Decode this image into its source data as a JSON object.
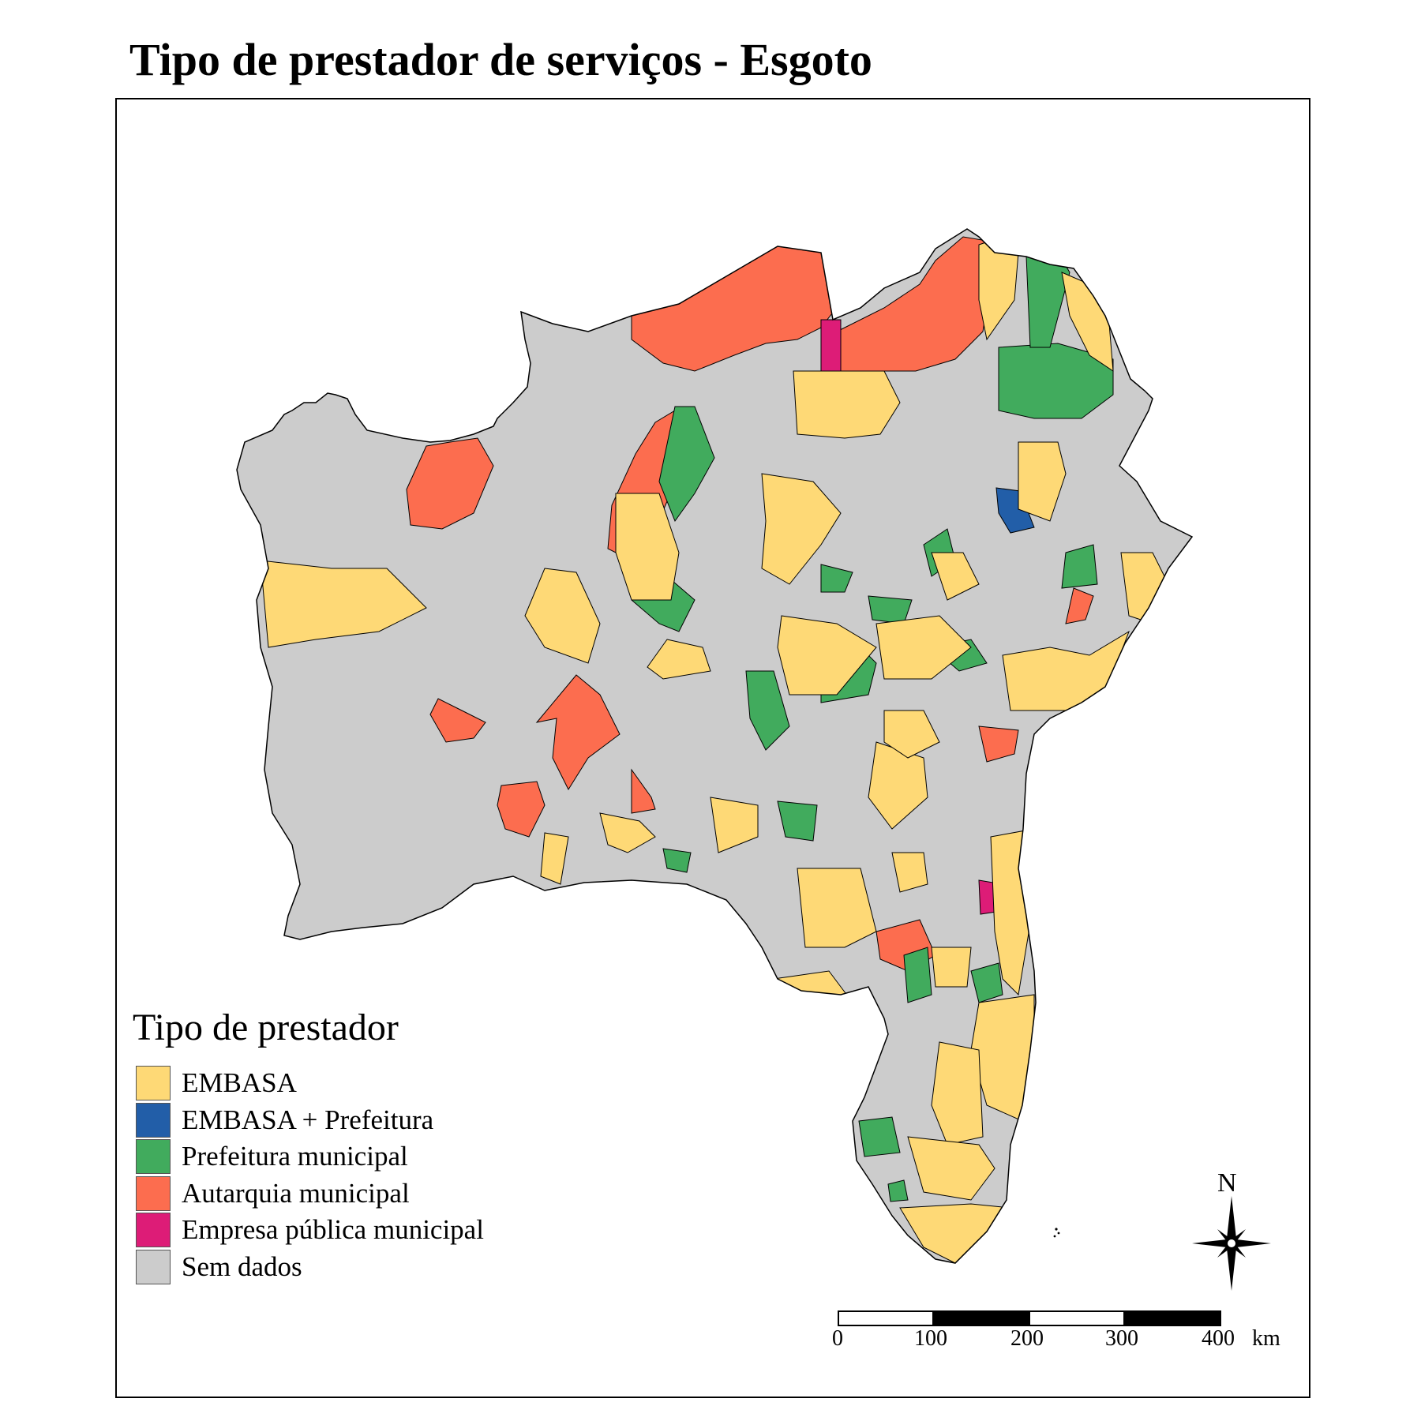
{
  "title": "Tipo de prestador de serviços - Esgoto",
  "legend": {
    "title": "Tipo de prestador",
    "items": [
      {
        "label": "EMBASA",
        "color": "#FED976"
      },
      {
        "label": "EMBASA + Prefeitura",
        "color": "#225EA8"
      },
      {
        "label": "Prefeitura municipal",
        "color": "#41AB5D"
      },
      {
        "label": "Autarquia municipal",
        "color": "#FC6D4F"
      },
      {
        "label": "Empresa pública municipal",
        "color": "#DD1C77"
      },
      {
        "label": "Sem dados",
        "color": "#CCCCCC"
      }
    ]
  },
  "north_arrow": {
    "label": "N"
  },
  "scale_bar": {
    "ticks": [
      "0",
      "100",
      "200",
      "300",
      "400"
    ],
    "unit": "km"
  },
  "colors": {
    "boundary": "#000000",
    "background": "#FFFFFF"
  }
}
